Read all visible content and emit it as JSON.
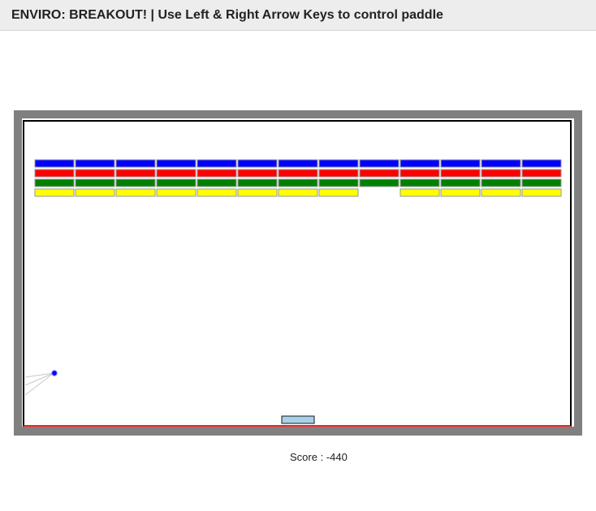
{
  "window": {
    "title": "ENVIRO: BREAKOUT! | Use Left & Right Arrow Keys to control paddle"
  },
  "score": {
    "text": "Score : -440",
    "value": -440
  },
  "colors": {
    "frame": "#808080",
    "arena": "#ffffff",
    "bottom_line": "#ff2020",
    "ball": "#0000ff",
    "paddle_fill": "#a8d0e6",
    "paddle_stroke": "#1a1a1a",
    "brick_stroke": "#9a9a9a",
    "trail": "#c8c8c8"
  },
  "bricks": {
    "columns": 13,
    "rows": [
      {
        "color": "#0000ff",
        "present": [
          1,
          1,
          1,
          1,
          1,
          1,
          1,
          1,
          1,
          1,
          1,
          1,
          1
        ]
      },
      {
        "color": "#ff0000",
        "present": [
          1,
          1,
          1,
          1,
          1,
          1,
          1,
          1,
          1,
          1,
          1,
          1,
          1
        ]
      },
      {
        "color": "#008000",
        "present": [
          1,
          1,
          1,
          1,
          1,
          1,
          1,
          1,
          1,
          1,
          1,
          1,
          1
        ]
      },
      {
        "color": "#ffff00",
        "present": [
          1,
          1,
          1,
          1,
          1,
          1,
          1,
          1,
          0,
          1,
          1,
          1,
          1
        ]
      }
    ]
  }
}
